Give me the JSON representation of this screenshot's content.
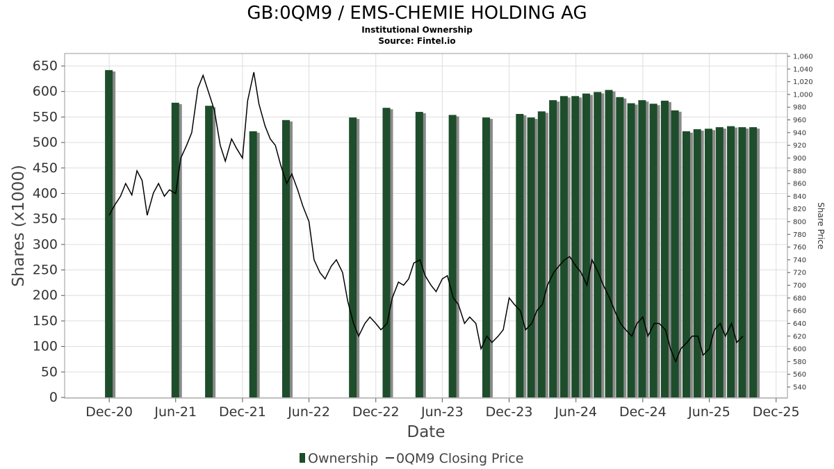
{
  "chart_data": {
    "type": "bar",
    "title": "GB:0QM9 / EMS-CHEMIE HOLDING AG",
    "subtitle_lines": [
      "Institutional Ownership",
      "Source: Fintel.io"
    ],
    "xlabel": "Date",
    "ylabel": "Shares (x1000)",
    "y2label": "Share Price",
    "ylim": [
      0,
      650
    ],
    "y2lim": [
      540,
      1060
    ],
    "yticks": [
      "0",
      "50",
      "100",
      "150",
      "200",
      "250",
      "300",
      "350",
      "400",
      "450",
      "500",
      "550",
      "600",
      "650"
    ],
    "y2ticks": [
      "540",
      "560",
      "580",
      "600",
      "620",
      "640",
      "660",
      "680",
      "700",
      "720",
      "740",
      "760",
      "780",
      "800",
      "820",
      "840",
      "860",
      "880",
      "900",
      "920",
      "940",
      "960",
      "980",
      "1,000",
      "1,020",
      "1,040",
      "1,060"
    ],
    "xticks": [
      "Dec-20",
      "Jun-21",
      "Dec-21",
      "Jun-22",
      "Dec-22",
      "Jun-23",
      "Dec-23",
      "Jun-24",
      "Dec-24",
      "Jun-25",
      "Dec-25"
    ],
    "grid": true,
    "legend_position": "bottom",
    "colors": {
      "bars": "#1e4d2b",
      "bar_shadow": "#8a8a8a",
      "line": "#000000",
      "grid": "#dddddd"
    },
    "series": [
      {
        "name": "Ownership",
        "type": "bar",
        "x": [
          "2020-12-01",
          "2021-06-01",
          "2021-09-01",
          "2021-12-31",
          "2022-03-31",
          "2022-09-30",
          "2022-12-31",
          "2023-03-31",
          "2023-06-30",
          "2023-09-30",
          "2023-12-31",
          "2024-01-31",
          "2024-02-29",
          "2024-03-31",
          "2024-04-30",
          "2024-05-31",
          "2024-06-30",
          "2024-07-31",
          "2024-08-31",
          "2024-09-30",
          "2024-10-31",
          "2024-11-30",
          "2024-12-31",
          "2025-01-31",
          "2025-02-28",
          "2025-03-31",
          "2025-04-30",
          "2025-05-31",
          "2025-06-30",
          "2025-07-31",
          "2025-08-31",
          "2025-09-30"
        ],
        "values": [
          642,
          578,
          572,
          522,
          544,
          549,
          568,
          560,
          554,
          549,
          556,
          549,
          561,
          583,
          591,
          591,
          596,
          599,
          603,
          589,
          577,
          583,
          576,
          582,
          563,
          522,
          526,
          527,
          530,
          532,
          530,
          530
        ]
      },
      {
        "name": "0QM9 Closing Price",
        "type": "line",
        "x": [
          "2020-12-01",
          "2020-12-15",
          "2021-01-01",
          "2021-01-15",
          "2021-02-01",
          "2021-02-15",
          "2021-03-01",
          "2021-03-15",
          "2021-04-01",
          "2021-04-15",
          "2021-05-01",
          "2021-05-15",
          "2021-06-01",
          "2021-06-15",
          "2021-07-01",
          "2021-07-15",
          "2021-08-01",
          "2021-08-15",
          "2021-09-01",
          "2021-09-15",
          "2021-10-01",
          "2021-10-15",
          "2021-11-01",
          "2021-11-15",
          "2021-12-01",
          "2021-12-15",
          "2022-01-01",
          "2022-01-15",
          "2022-02-01",
          "2022-02-15",
          "2022-03-01",
          "2022-03-15",
          "2022-04-01",
          "2022-04-15",
          "2022-05-01",
          "2022-05-15",
          "2022-06-01",
          "2022-06-15",
          "2022-07-01",
          "2022-07-15",
          "2022-08-01",
          "2022-08-15",
          "2022-09-01",
          "2022-09-15",
          "2022-10-01",
          "2022-10-15",
          "2022-11-01",
          "2022-11-15",
          "2022-12-01",
          "2022-12-15",
          "2023-01-01",
          "2023-01-15",
          "2023-02-01",
          "2023-02-15",
          "2023-03-01",
          "2023-03-15",
          "2023-04-01",
          "2023-04-15",
          "2023-05-01",
          "2023-05-15",
          "2023-06-01",
          "2023-06-15",
          "2023-07-01",
          "2023-07-15",
          "2023-08-01",
          "2023-08-15",
          "2023-09-01",
          "2023-09-15",
          "2023-10-01",
          "2023-10-15",
          "2023-11-01",
          "2023-11-15",
          "2023-12-01",
          "2023-12-15",
          "2024-01-01",
          "2024-01-15",
          "2024-02-01",
          "2024-02-15",
          "2024-03-01",
          "2024-03-15",
          "2024-04-01",
          "2024-04-15",
          "2024-05-01",
          "2024-05-15",
          "2024-06-01",
          "2024-06-15",
          "2024-07-01",
          "2024-07-15",
          "2024-08-01",
          "2024-08-15",
          "2024-09-01",
          "2024-09-15",
          "2024-10-01",
          "2024-10-15",
          "2024-11-01",
          "2024-11-15",
          "2024-12-01",
          "2024-12-15",
          "2025-01-01",
          "2025-01-15",
          "2025-02-01",
          "2025-02-15",
          "2025-03-01",
          "2025-03-15",
          "2025-04-01",
          "2025-04-15",
          "2025-05-01",
          "2025-05-15",
          "2025-06-01",
          "2025-06-15",
          "2025-07-01",
          "2025-07-15",
          "2025-08-01",
          "2025-08-15",
          "2025-09-01"
        ],
        "values": [
          810,
          825,
          840,
          860,
          842,
          880,
          865,
          810,
          845,
          860,
          840,
          850,
          844,
          900,
          920,
          940,
          1010,
          1030,
          1000,
          975,
          920,
          895,
          930,
          915,
          900,
          990,
          1035,
          985,
          950,
          930,
          920,
          890,
          860,
          875,
          850,
          825,
          800,
          740,
          720,
          710,
          730,
          740,
          720,
          675,
          640,
          620,
          640,
          650,
          640,
          630,
          640,
          680,
          705,
          700,
          710,
          735,
          740,
          715,
          700,
          690,
          710,
          715,
          680,
          670,
          640,
          650,
          640,
          600,
          620,
          610,
          620,
          630,
          680,
          670,
          660,
          630,
          640,
          660,
          670,
          700,
          720,
          730,
          740,
          745,
          730,
          720,
          700,
          740,
          720,
          700,
          680,
          660,
          640,
          630,
          620,
          640,
          650,
          620,
          640,
          640,
          630,
          600,
          580,
          600,
          610,
          620,
          620,
          590,
          600,
          630,
          640,
          620,
          640,
          610,
          620
        ]
      }
    ]
  }
}
